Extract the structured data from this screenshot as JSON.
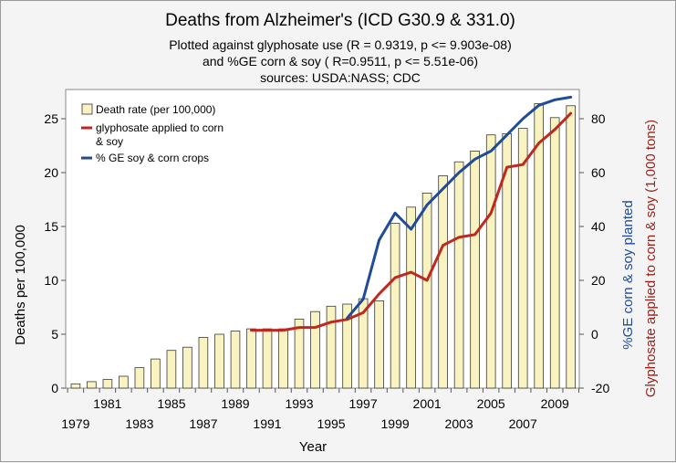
{
  "chart_data": {
    "type": "bar",
    "title": "Deaths from Alzheimer's (ICD G30.9 & 331.0)",
    "subtitle_lines": [
      "Plotted against glyphosate use (R = 0.9319, p <= 9.903e-08)",
      "and %GE corn & soy ( R=0.9511, p <= 5.51e-06)",
      "sources: USDA:NASS; CDC"
    ],
    "xlabel": "Year",
    "ylabel_left": "Deaths per 100,000",
    "ylabel_right_inner": "%GE corn & soy planted",
    "ylabel_right_outer": "Glyphosate applied to corn & soy (1,000 tons)",
    "x_ticks_upper": [
      "1981",
      "1985",
      "1989",
      "1993",
      "1997",
      "2001",
      "2005",
      "2009"
    ],
    "x_ticks_lower": [
      "1979",
      "1983",
      "1987",
      "1991",
      "1995",
      "1999",
      "2003",
      "2007"
    ],
    "ylim_left": [
      0,
      25
    ],
    "yticks_left": [
      "0",
      "5",
      "10",
      "15",
      "20",
      "25"
    ],
    "ylim_right": [
      -20,
      80
    ],
    "yticks_right": [
      "-20",
      "0",
      "20",
      "40",
      "60",
      "80"
    ],
    "legend_position": "top-left",
    "years": [
      1979,
      1980,
      1981,
      1982,
      1983,
      1984,
      1985,
      1986,
      1987,
      1988,
      1989,
      1990,
      1991,
      1992,
      1993,
      1994,
      1995,
      1996,
      1997,
      1998,
      1999,
      2000,
      2001,
      2002,
      2003,
      2004,
      2005,
      2006,
      2007,
      2008,
      2009,
      2010
    ],
    "series": [
      {
        "name": "Death rate (per 100,000)",
        "type": "bar",
        "axis": "left",
        "color": "#f8f3c0",
        "values": [
          0.4,
          0.6,
          0.8,
          1.1,
          1.9,
          2.7,
          3.5,
          3.8,
          4.7,
          5.0,
          5.3,
          5.5,
          5.5,
          5.5,
          6.4,
          7.1,
          7.6,
          7.8,
          8.3,
          8.1,
          15.3,
          16.8,
          18.1,
          19.7,
          21.0,
          22.0,
          23.5,
          23.6,
          24.1,
          26.4,
          25.1,
          26.2
        ]
      },
      {
        "name": "glyphosate applied to corn & soy",
        "legend_lines": [
          "glyphosate applied to corn",
          "& soy"
        ],
        "type": "line",
        "axis": "right",
        "color": "#c0281e",
        "x": [
          1990,
          1991,
          1992,
          1993,
          1994,
          1995,
          1996,
          1997,
          1998,
          1999,
          2000,
          2001,
          2002,
          2003,
          2004,
          2005,
          2006,
          2007,
          2008,
          2009,
          2010
        ],
        "values": [
          1.5,
          1.5,
          1.5,
          2.5,
          2.5,
          4.5,
          5.5,
          8.0,
          15.0,
          21.0,
          23.0,
          20.0,
          33.0,
          36.0,
          37.0,
          45.0,
          62.0,
          63.0,
          71.0,
          76.0,
          82.0
        ]
      },
      {
        "name": "% GE soy & corn crops",
        "type": "line",
        "axis": "right",
        "color": "#1f4b99",
        "x": [
          1996,
          1997,
          1998,
          1999,
          2000,
          2001,
          2002,
          2003,
          2004,
          2005,
          2006,
          2007,
          2008,
          2009,
          2010
        ],
        "values": [
          6.0,
          13.0,
          35.0,
          45.0,
          39.0,
          48.0,
          54.0,
          60.0,
          65.0,
          68.0,
          74.0,
          80.0,
          85.0,
          87.0,
          88.0
        ]
      }
    ]
  }
}
